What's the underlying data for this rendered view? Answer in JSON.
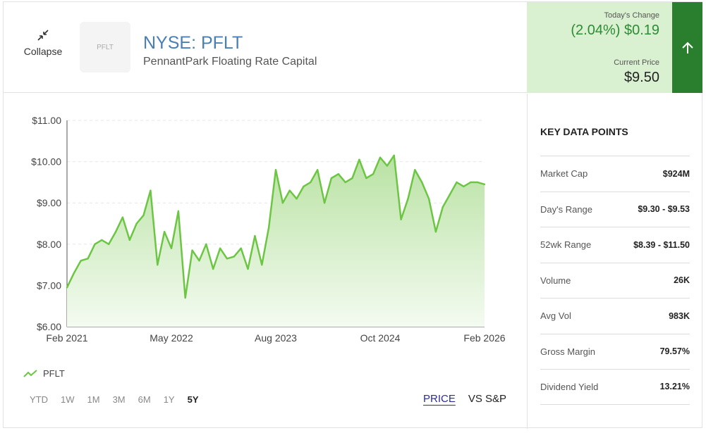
{
  "header": {
    "collapse_label": "Collapse",
    "logo_text": "PFLT",
    "ticker": "NYSE: PFLT",
    "company": "PennantPark Floating Rate Capital",
    "todays_change_label": "Today's Change",
    "todays_change_value": "(2.04%) $0.19",
    "current_price_label": "Current Price",
    "current_price_value": "$9.50",
    "colors": {
      "change_bg": "#d9f1d0",
      "change_text": "#2e8b35",
      "arrow_bg": "#2a7f2f"
    },
    "arrow_icon": "arrow-up-icon"
  },
  "chart_data": {
    "type": "area",
    "series": [
      {
        "name": "PFLT"
      }
    ],
    "ylim": [
      6.0,
      11.0
    ],
    "yticks": [
      "$11.00",
      "$10.00",
      "$9.00",
      "$8.00",
      "$7.00",
      "$6.00"
    ],
    "xticks": [
      "Feb 2021",
      "May 2022",
      "Aug 2023",
      "Oct 2024",
      "Feb 2026"
    ],
    "x": [
      "2021-02",
      "2021-03",
      "2021-04",
      "2021-05",
      "2021-06",
      "2021-07",
      "2021-08",
      "2021-09",
      "2021-10",
      "2021-11",
      "2021-12",
      "2022-01",
      "2022-02",
      "2022-03",
      "2022-04",
      "2022-05",
      "2022-06",
      "2022-07",
      "2022-08",
      "2022-09",
      "2022-10",
      "2022-11",
      "2022-12",
      "2023-01",
      "2023-02",
      "2023-03",
      "2023-04",
      "2023-05",
      "2023-06",
      "2023-07",
      "2023-08",
      "2023-09",
      "2023-10",
      "2023-11",
      "2023-12",
      "2024-01",
      "2024-02",
      "2024-03",
      "2024-04",
      "2024-05",
      "2024-06",
      "2024-07",
      "2024-08",
      "2024-09",
      "2024-10",
      "2024-11",
      "2024-12",
      "2025-01",
      "2025-02",
      "2025-03",
      "2025-04",
      "2025-05",
      "2025-06",
      "2025-07",
      "2025-08",
      "2025-09",
      "2025-10",
      "2025-11",
      "2025-12",
      "2026-01",
      "2026-02"
    ],
    "values": [
      6.95,
      7.3,
      7.6,
      7.65,
      8.0,
      8.1,
      8.0,
      8.3,
      8.65,
      8.1,
      8.5,
      8.7,
      9.3,
      7.5,
      8.3,
      7.9,
      8.8,
      6.7,
      7.85,
      7.6,
      8.0,
      7.4,
      7.9,
      7.65,
      7.7,
      7.9,
      7.4,
      8.2,
      7.5,
      8.4,
      9.8,
      9.0,
      9.3,
      9.1,
      9.4,
      9.5,
      9.8,
      9.0,
      9.6,
      9.7,
      9.5,
      9.6,
      10.05,
      9.6,
      9.7,
      10.1,
      9.9,
      10.15,
      8.6,
      9.1,
      9.8,
      9.5,
      9.1,
      8.3,
      8.9,
      9.2,
      9.5,
      9.4,
      9.5,
      9.5,
      9.45
    ],
    "grid": true,
    "legend": "bottom-left",
    "colors": {
      "line": "#6cc644",
      "fill_top": "#b9e2a3",
      "fill_bottom": "#f4fbf1"
    }
  },
  "legend": {
    "label": "PFLT",
    "icon": "trend-line-icon"
  },
  "ranges": [
    "YTD",
    "1W",
    "1M",
    "3M",
    "6M",
    "1Y",
    "5Y"
  ],
  "active_range": "5Y",
  "views": {
    "price": "PRICE",
    "vs_sp": "VS S&P",
    "active": "PRICE"
  },
  "key_data": {
    "title": "KEY DATA POINTS",
    "rows": [
      {
        "label": "Market Cap",
        "value": "$924M"
      },
      {
        "label": "Day's Range",
        "value": "$9.30 - $9.53"
      },
      {
        "label": "52wk Range",
        "value": "$8.39 - $11.50"
      },
      {
        "label": "Volume",
        "value": "26K"
      },
      {
        "label": "Avg Vol",
        "value": "983K"
      },
      {
        "label": "Gross Margin",
        "value": "79.57%"
      },
      {
        "label": "Dividend Yield",
        "value": "13.21%"
      }
    ]
  }
}
